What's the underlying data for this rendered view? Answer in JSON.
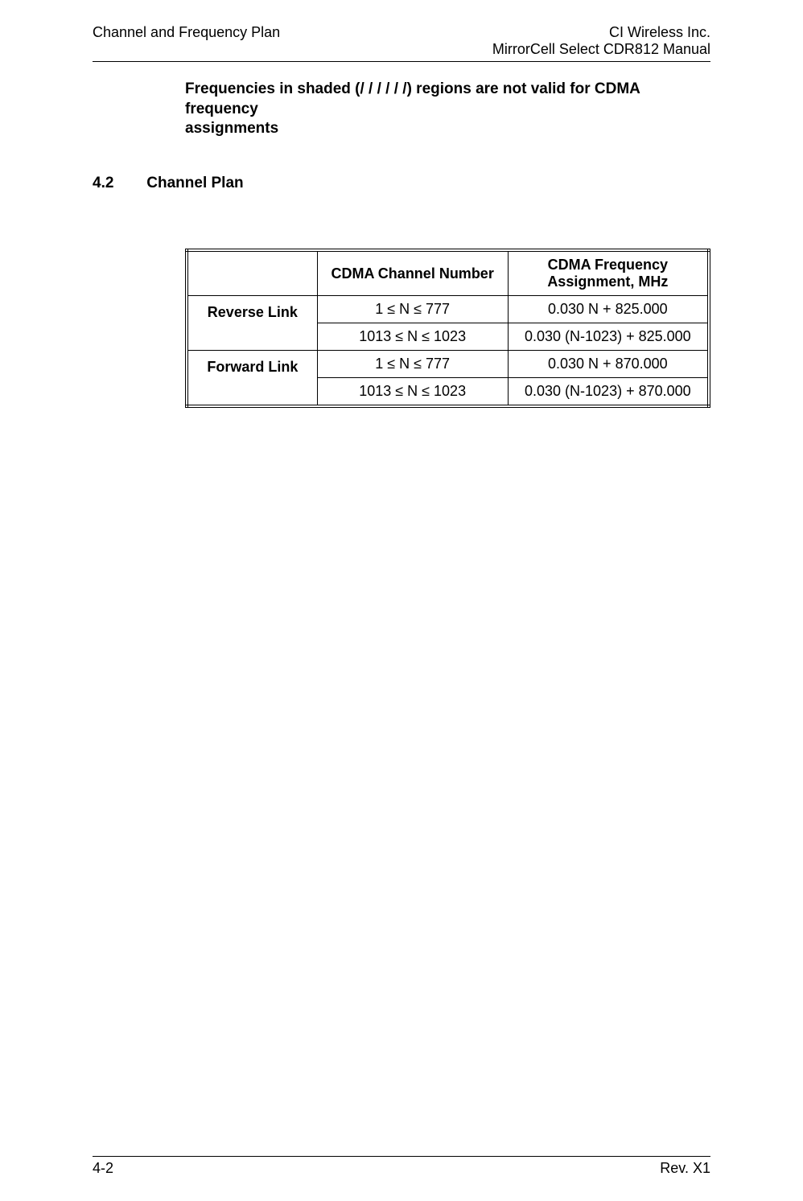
{
  "header": {
    "left": "Channel and Frequency Plan",
    "right_line1": "CI Wireless Inc.",
    "right_line2": "MirrorCell Select CDR812 Manual"
  },
  "note": {
    "line1": "Frequencies in shaded (/ / / / / /) regions are not valid for CDMA frequency",
    "line2": "assignments"
  },
  "section": {
    "number": "4.2",
    "title": "Channel Plan"
  },
  "table": {
    "head": {
      "col1": "",
      "col2": "CDMA Channel Number",
      "col3_line1": "CDMA Frequency",
      "col3_line2": "Assignment, MHz"
    },
    "rows": [
      {
        "rowhead": "Reverse Link",
        "cells": [
          {
            "chan": "1 ≤ N ≤ 777",
            "freq": "0.030 N + 825.000"
          },
          {
            "chan": "1013 ≤ N ≤ 1023",
            "freq": "0.030 (N-1023) + 825.000"
          }
        ]
      },
      {
        "rowhead": "Forward Link",
        "cells": [
          {
            "chan": "1 ≤ N ≤ 777",
            "freq": "0.030 N + 870.000"
          },
          {
            "chan": "1013 ≤ N ≤ 1023",
            "freq": "0.030 (N-1023) + 870.000"
          }
        ]
      }
    ]
  },
  "footer": {
    "left": "4-2",
    "right": "Rev. X1"
  }
}
